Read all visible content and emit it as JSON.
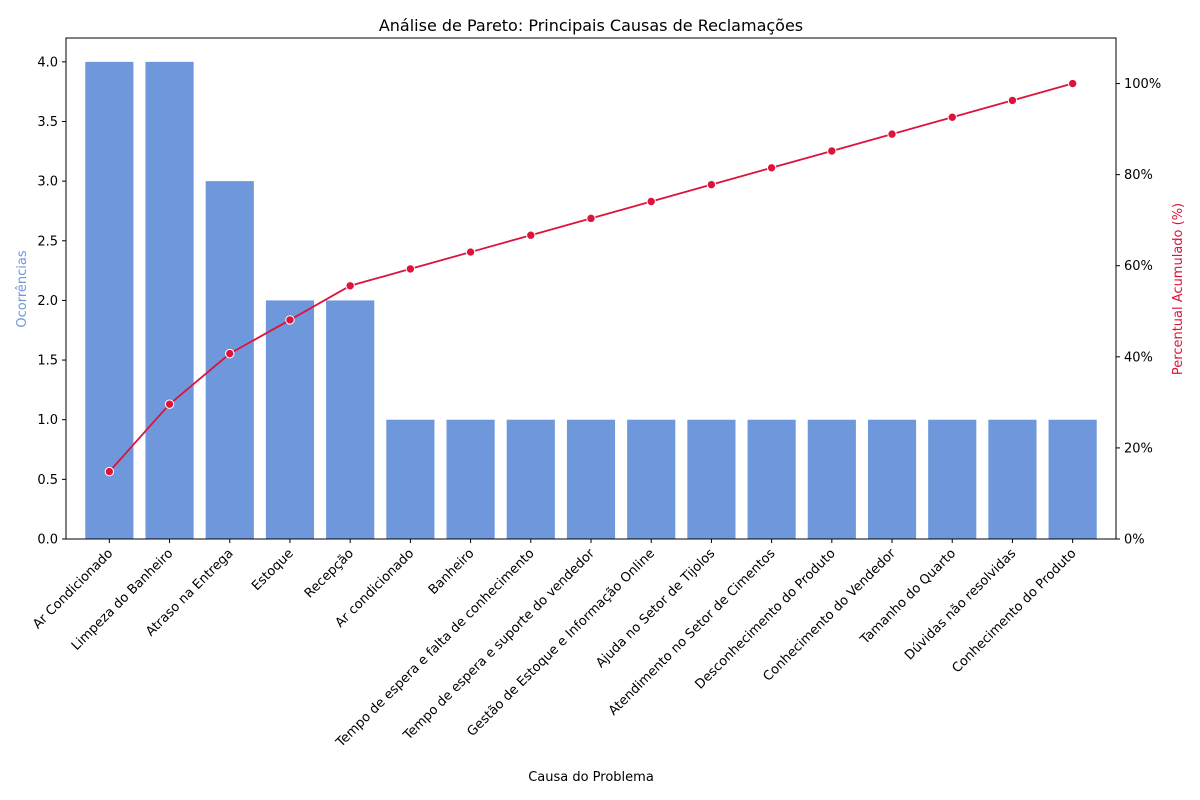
{
  "chart_data": {
    "type": "bar",
    "title": "Análise de Pareto: Principais Causas de Reclamações",
    "xlabel": "Causa do Problema",
    "ylabel": "Ocorrências",
    "y2label": "Percentual Acumulado (%)",
    "ylim": [
      0,
      4.2
    ],
    "y2lim": [
      0,
      110
    ],
    "yticks": [
      0.0,
      0.5,
      1.0,
      1.5,
      2.0,
      2.5,
      3.0,
      3.5,
      4.0
    ],
    "ytick_labels": [
      "0.0",
      "0.5",
      "1.0",
      "1.5",
      "2.0",
      "2.5",
      "3.0",
      "3.5",
      "4.0"
    ],
    "y2ticks": [
      0,
      20,
      40,
      60,
      80,
      100
    ],
    "y2tick_labels": [
      "0%",
      "20%",
      "40%",
      "60%",
      "80%",
      "100%"
    ],
    "grid": false,
    "colors": {
      "bars": "#6f98dc",
      "line": "#dc143c",
      "left_axis_label": "#6f98dc",
      "right_axis_label": "#dc143c"
    },
    "categories": [
      "Ar Condicionado",
      "Limpeza do Banheiro",
      "Atraso na Entrega",
      "Estoque",
      "Recepção",
      "Ar condicionado",
      "Banheiro",
      "Tempo de espera e falta de conhecimento",
      "Tempo de espera e suporte do vendedor",
      "Gestão de Estoque e Informação Online",
      "Ajuda no Setor de Tijolos",
      "Atendimento no Setor de Cimentos",
      "Desconhecimento do Produto",
      "Conhecimento do Vendedor",
      "Tamanho do Quarto",
      "Dúvidas não resolvidas",
      "Conhecimento do Produto"
    ],
    "series": [
      {
        "name": "Ocorrências",
        "type": "bar",
        "values": [
          4,
          4,
          3,
          2,
          2,
          1,
          1,
          1,
          1,
          1,
          1,
          1,
          1,
          1,
          1,
          1,
          1
        ]
      },
      {
        "name": "Percentual Acumulado (%)",
        "type": "line",
        "values": [
          14.8,
          29.6,
          40.7,
          48.1,
          55.6,
          59.3,
          63.0,
          66.7,
          70.4,
          74.1,
          77.8,
          81.5,
          85.2,
          88.9,
          92.6,
          96.3,
          100.0
        ]
      }
    ]
  }
}
